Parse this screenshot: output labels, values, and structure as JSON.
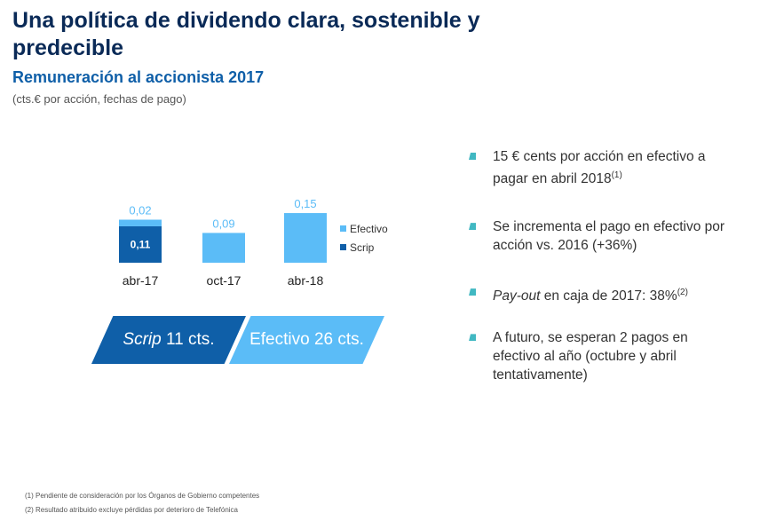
{
  "header": {
    "title": "Una política de dividendo clara, sostenible y predecible",
    "subtitle": "Remuneración al accionista 2017",
    "units": "(cts.€ por acción, fechas de pago)"
  },
  "colors": {
    "efectivo": "#5bbcf7",
    "scrip": "#0f5fa8",
    "title": "#0a2a57",
    "bullet": "#41b8c2"
  },
  "chart_data": {
    "type": "bar",
    "stacked": true,
    "categories": [
      "abr-17",
      "oct-17",
      "abr-18"
    ],
    "series": [
      {
        "name": "Scrip",
        "values": [
          0.11,
          0,
          0
        ],
        "labels": [
          "0,11",
          "",
          ""
        ]
      },
      {
        "name": "Efectivo",
        "values": [
          0.02,
          0.09,
          0.15
        ],
        "labels": [
          "0,02",
          "0,09",
          "0,15"
        ]
      }
    ],
    "legend": [
      "Efectivo",
      "Scrip"
    ],
    "legend_placement": "right",
    "grid": false
  },
  "summary": {
    "scrip_italic": "Scrip",
    "scrip_rest": " 11 cts.",
    "efectivo": "Efectivo 26 cts."
  },
  "bullets": {
    "b1_text": "15 € cents por acción en efectivo a pagar en abril 2018",
    "b1_note": "(1)",
    "b2_text": "Se incrementa el pago en efectivo por acción vs. 2016 (+36%)",
    "b3_italic": "Pay-out",
    "b3_text": " en caja de 2017: 38%",
    "b3_note": "(2)",
    "b4_text": "A futuro, se esperan 2 pagos en efectivo al año (octubre y abril tentativamente)"
  },
  "footnotes": {
    "f1": "(1) Pendiente de consideración por los Órganos de Gobierno competentes",
    "f2": "(2) Resultado atribuido excluye pérdidas por deterioro de  Telefónica"
  }
}
